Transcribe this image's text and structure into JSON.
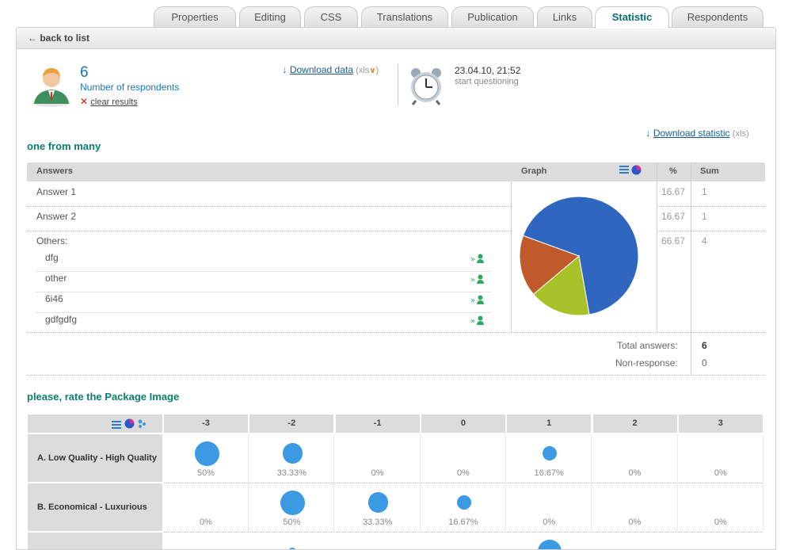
{
  "tabs": [
    {
      "label": "Properties",
      "active": false
    },
    {
      "label": "Editing",
      "active": false
    },
    {
      "label": "CSS",
      "active": false
    },
    {
      "label": "Translations",
      "active": false
    },
    {
      "label": "Publication",
      "active": false
    },
    {
      "label": "Links",
      "active": false
    },
    {
      "label": "Statistic",
      "active": true
    },
    {
      "label": "Respondents",
      "active": false
    }
  ],
  "back_link": "back to list",
  "summary": {
    "respondents_count": "6",
    "respondents_label": "Number of respondents",
    "clear_results": "clear results",
    "download_data": "Download data",
    "download_data_format": "(xls",
    "download_data_close": ")",
    "start_datetime": "23.04.10, 21:52",
    "start_label": "start questioning"
  },
  "download_statistic": "Download statistic",
  "download_statistic_format": "(xls)",
  "question1": {
    "title": "one from many",
    "headers": {
      "answers": "Answers",
      "graph": "Graph",
      "percent": "%",
      "sum": "Sum"
    },
    "rows": [
      {
        "label": "Answer 1",
        "percent": "16.67",
        "sum": "1"
      },
      {
        "label": "Answer 2",
        "percent": "16.67",
        "sum": "1"
      },
      {
        "label": "Others:",
        "percent": "66.67",
        "sum": "4"
      }
    ],
    "others": [
      "dfg",
      "other",
      "6i46",
      "gdfgdfg"
    ],
    "total_label": "Total answers:",
    "total_value": "6",
    "nonresponse_label": "Non-response:",
    "nonresponse_value": "0",
    "pie": [
      {
        "name": "Others",
        "value": 66.67,
        "color": "#2f66c0"
      },
      {
        "name": "Answer 2",
        "value": 16.67,
        "color": "#a8c32a"
      },
      {
        "name": "Answer 1",
        "value": 16.67,
        "color": "#c05a2a"
      }
    ]
  },
  "question2": {
    "title": "please, rate the Package Image",
    "scale": [
      "-3",
      "-2",
      "-1",
      "0",
      "1",
      "2",
      "3"
    ],
    "rows": [
      {
        "label": "A. Low Quality - High Quality",
        "values": [
          50,
          33.33,
          0,
          0,
          16.67,
          0,
          0
        ],
        "labels": [
          "50%",
          "33.33%",
          "0%",
          "0%",
          "16.67%",
          "0%",
          "0%"
        ]
      },
      {
        "label": "B. Economical - Luxurious",
        "values": [
          0,
          50,
          33.33,
          16.67,
          0,
          0,
          0
        ],
        "labels": [
          "0%",
          "50%",
          "33.33%",
          "16.67%",
          "0%",
          "0%",
          "0%"
        ]
      }
    ]
  },
  "colors": {
    "accent_title": "#0a7f6e",
    "link": "#1c5d8a",
    "bubble": "#3b9ae1"
  }
}
